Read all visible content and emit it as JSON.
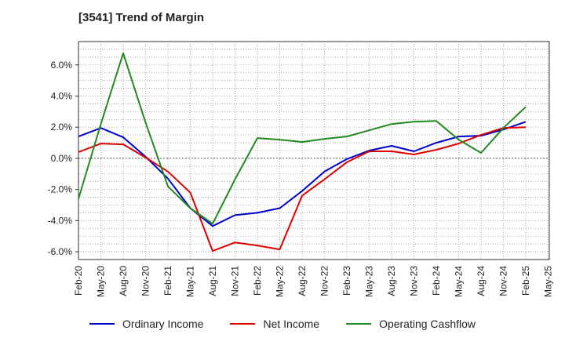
{
  "title": "[3541]  Trend of Margin",
  "chart_data": {
    "type": "line",
    "title": "[3541]  Trend of Margin",
    "x": [
      "Feb-20",
      "May-20",
      "Aug-20",
      "Nov-20",
      "Feb-21",
      "May-21",
      "Aug-21",
      "Nov-21",
      "Feb-22",
      "May-22",
      "Aug-22",
      "Nov-22",
      "Feb-23",
      "May-23",
      "Aug-23",
      "Nov-23",
      "Feb-24",
      "May-24",
      "Aug-24",
      "Nov-24",
      "Feb-25",
      "May-25"
    ],
    "ylim": [
      -6.5,
      7.5
    ],
    "yticks": [
      -6,
      -4,
      -2,
      0,
      2,
      4,
      6
    ],
    "ytick_labels": [
      "-6.0%",
      "-4.0%",
      "-2.0%",
      "0.0%",
      "2.0%",
      "4.0%",
      "6.0%"
    ],
    "grid": true,
    "legend_position": "bottom",
    "series": [
      {
        "name": "Ordinary Income",
        "color": "#0000cc",
        "values": [
          1.4,
          1.95,
          1.35,
          0.1,
          -1.3,
          -3.2,
          -4.35,
          -3.65,
          -3.5,
          -3.2,
          -2.1,
          -0.85,
          -0.05,
          0.5,
          0.8,
          0.45,
          1.0,
          1.4,
          1.45,
          1.85,
          2.35,
          null
        ]
      },
      {
        "name": "Net Income",
        "color": "#dd0000",
        "values": [
          0.4,
          0.95,
          0.9,
          0.05,
          -0.85,
          -2.2,
          -5.95,
          -5.4,
          -5.6,
          -5.85,
          -2.4,
          -1.35,
          -0.25,
          0.45,
          0.45,
          0.25,
          0.55,
          0.95,
          1.5,
          1.95,
          2.0,
          null
        ]
      },
      {
        "name": "Operating Cashflow",
        "color": "#228822",
        "values": [
          -2.6,
          2.2,
          6.75,
          2.3,
          -1.8,
          -3.2,
          -4.2,
          -1.35,
          1.3,
          1.2,
          1.05,
          1.25,
          1.4,
          1.8,
          2.2,
          2.35,
          2.4,
          1.2,
          0.35,
          1.95,
          3.3,
          null
        ]
      }
    ]
  },
  "colors": {
    "grid": "#999999",
    "axis": "#333333"
  }
}
